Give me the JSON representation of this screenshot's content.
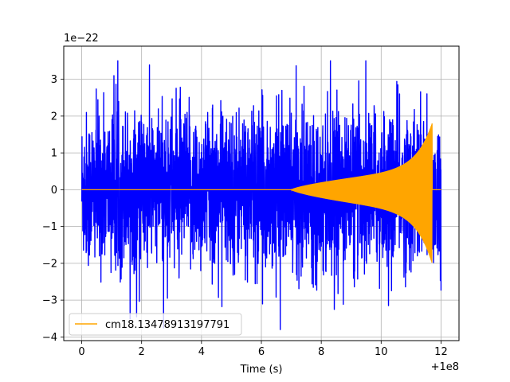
{
  "chart_data": {
    "type": "line",
    "xlabel": "Time (s)",
    "ylabel": "",
    "x_offset_label": "+1e8",
    "y_scale_label": "1e−22",
    "xlim": [
      -0.6,
      12.6
    ],
    "ylim": [
      -4.1,
      3.9
    ],
    "x_ticks": [
      0,
      2,
      4,
      6,
      8,
      10,
      12
    ],
    "x_tick_labels": [
      "0",
      "2",
      "4",
      "6",
      "8",
      "10",
      "12"
    ],
    "y_ticks": [
      -4,
      -3,
      -2,
      -1,
      0,
      1,
      2,
      3
    ],
    "y_tick_labels": [
      "−4",
      "−3",
      "−2",
      "−1",
      "0",
      "1",
      "2",
      "3"
    ],
    "grid": true,
    "legend_position": "lower-left",
    "series": [
      {
        "name": "",
        "color": "#0000ff",
        "x_range": [
          0,
          12
        ],
        "y_typical_amplitude": 2.3,
        "y_max": 3.5,
        "y_min": -3.8
      },
      {
        "name": "cm18.13478913197791",
        "color": "#ffa500",
        "x_range": [
          0,
          12
        ],
        "onset_time": 7.0,
        "merger_time": 11.7,
        "peak_positive": 1.8,
        "peak_negative": -2.0
      }
    ]
  }
}
